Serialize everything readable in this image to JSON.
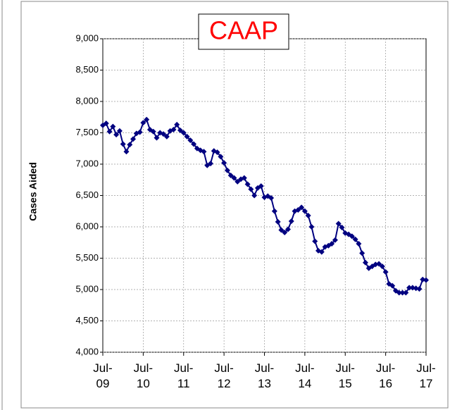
{
  "chart_data": {
    "type": "line",
    "title": "CAAP",
    "y_label": "Cases Aided",
    "categories": [
      "Jul-\n09",
      null,
      null,
      null,
      null,
      null,
      null,
      null,
      null,
      null,
      null,
      null,
      "Jul-\n10",
      null,
      null,
      null,
      null,
      null,
      null,
      null,
      null,
      null,
      null,
      null,
      "Jul-\n11",
      null,
      null,
      null,
      null,
      null,
      null,
      null,
      null,
      null,
      null,
      null,
      "Jul-\n12",
      null,
      null,
      null,
      null,
      null,
      null,
      null,
      null,
      null,
      null,
      null,
      "Jul-\n13",
      null,
      null,
      null,
      null,
      null,
      null,
      null,
      null,
      null,
      null,
      null,
      "Jul-\n14",
      null,
      null,
      null,
      null,
      null,
      null,
      null,
      null,
      null,
      null,
      null,
      "Jul-\n15",
      null,
      null,
      null,
      null,
      null,
      null,
      null,
      null,
      null,
      null,
      null,
      "Jul-\n16",
      null,
      null,
      null,
      null,
      null,
      null,
      null,
      null,
      null,
      null,
      null,
      "Jul-\n17"
    ],
    "series": [
      {
        "name": "CAAP",
        "color": "#000080",
        "values": [
          7620,
          7650,
          7520,
          7600,
          7470,
          7530,
          7320,
          7200,
          7310,
          7400,
          7490,
          7510,
          7660,
          7710,
          7550,
          7520,
          7420,
          7500,
          7480,
          7440,
          7530,
          7550,
          7630,
          7540,
          7500,
          7440,
          7380,
          7320,
          7250,
          7220,
          7200,
          6980,
          7010,
          7210,
          7190,
          7120,
          7020,
          6900,
          6820,
          6780,
          6720,
          6760,
          6780,
          6680,
          6600,
          6500,
          6620,
          6650,
          6470,
          6490,
          6460,
          6250,
          6080,
          5950,
          5910,
          5960,
          6090,
          6250,
          6270,
          6310,
          6250,
          6180,
          6000,
          5770,
          5620,
          5600,
          5680,
          5700,
          5730,
          5790,
          6050,
          5990,
          5900,
          5880,
          5850,
          5800,
          5730,
          5580,
          5430,
          5340,
          5370,
          5400,
          5410,
          5370,
          5280,
          5090,
          5060,
          4980,
          4950,
          4950,
          4950,
          5030,
          5030,
          5020,
          5010,
          5160,
          5150
        ]
      }
    ],
    "ylim": [
      4000,
      9000
    ],
    "yticks": [
      {
        "value": 4000,
        "label": "4,000"
      },
      {
        "value": 4500,
        "label": "4,500"
      },
      {
        "value": 5000,
        "label": "5,000"
      },
      {
        "value": 5500,
        "label": "5,500"
      },
      {
        "value": 6000,
        "label": "6,000"
      },
      {
        "value": 6500,
        "label": "6,500"
      },
      {
        "value": 7000,
        "label": "7,000"
      },
      {
        "value": 7500,
        "label": "7,500"
      },
      {
        "value": 8000,
        "label": "8,000"
      },
      {
        "value": 8500,
        "label": "8,500"
      },
      {
        "value": 9000,
        "label": "9,000"
      }
    ],
    "grid": true
  }
}
